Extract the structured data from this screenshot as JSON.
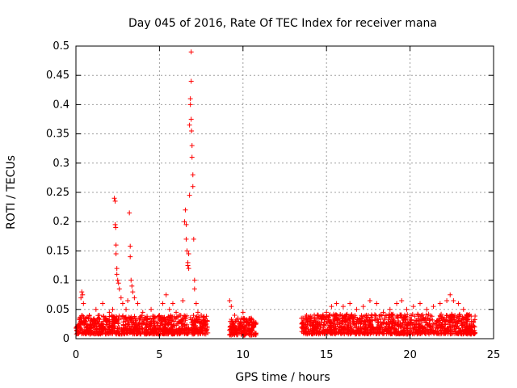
{
  "chart_data": {
    "type": "scatter",
    "title": "Day 045 of 2016, Rate Of TEC Index for receiver mana",
    "xlabel": "GPS time / hours",
    "ylabel": "ROTI / TECUs",
    "xlim": [
      0,
      25
    ],
    "ylim": [
      0,
      0.5
    ],
    "xticks": [
      0,
      5,
      10,
      15,
      20,
      25
    ],
    "xtick_labels": [
      "0",
      "5",
      "10",
      "15",
      "20",
      "25"
    ],
    "yticks": [
      0,
      0.05,
      0.1,
      0.15,
      0.2,
      0.25,
      0.3,
      0.35,
      0.4,
      0.45,
      0.5
    ],
    "ytick_labels": [
      "0",
      "0.05",
      "0.1",
      "0.15",
      "0.2",
      "0.25",
      "0.3",
      "0.35",
      "0.4",
      "0.45",
      "0.5"
    ],
    "grid": true,
    "marker": "+",
    "color": "#ff0000",
    "series": [
      {
        "name": "ROTI",
        "points": [
          [
            0.1,
            0.02
          ],
          [
            0.2,
            0.035
          ],
          [
            0.3,
            0.07
          ],
          [
            0.35,
            0.08
          ],
          [
            0.4,
            0.075
          ],
          [
            0.45,
            0.06
          ],
          [
            0.5,
            0.03
          ],
          [
            0.6,
            0.025
          ],
          [
            0.8,
            0.04
          ],
          [
            1.0,
            0.03
          ],
          [
            1.2,
            0.05
          ],
          [
            1.4,
            0.04
          ],
          [
            1.6,
            0.06
          ],
          [
            1.8,
            0.035
          ],
          [
            2.0,
            0.045
          ],
          [
            2.2,
            0.05
          ],
          [
            2.3,
            0.24
          ],
          [
            2.35,
            0.235
          ],
          [
            2.35,
            0.195
          ],
          [
            2.38,
            0.19
          ],
          [
            2.4,
            0.16
          ],
          [
            2.4,
            0.145
          ],
          [
            2.45,
            0.12
          ],
          [
            2.45,
            0.11
          ],
          [
            2.5,
            0.1
          ],
          [
            2.55,
            0.095
          ],
          [
            2.6,
            0.085
          ],
          [
            2.7,
            0.07
          ],
          [
            2.8,
            0.06
          ],
          [
            3.0,
            0.05
          ],
          [
            3.1,
            0.065
          ],
          [
            3.2,
            0.215
          ],
          [
            3.25,
            0.158
          ],
          [
            3.25,
            0.14
          ],
          [
            3.3,
            0.1
          ],
          [
            3.35,
            0.09
          ],
          [
            3.4,
            0.08
          ],
          [
            3.5,
            0.07
          ],
          [
            3.7,
            0.06
          ],
          [
            4.0,
            0.045
          ],
          [
            4.5,
            0.05
          ],
          [
            5.0,
            0.035
          ],
          [
            5.2,
            0.06
          ],
          [
            5.4,
            0.075
          ],
          [
            5.6,
            0.05
          ],
          [
            5.8,
            0.06
          ],
          [
            6.0,
            0.045
          ],
          [
            6.2,
            0.04
          ],
          [
            6.4,
            0.065
          ],
          [
            6.5,
            0.2
          ],
          [
            6.55,
            0.22
          ],
          [
            6.6,
            0.195
          ],
          [
            6.6,
            0.17
          ],
          [
            6.65,
            0.15
          ],
          [
            6.7,
            0.13
          ],
          [
            6.7,
            0.125
          ],
          [
            6.75,
            0.12
          ],
          [
            6.75,
            0.145
          ],
          [
            6.8,
            0.245
          ],
          [
            6.8,
            0.365
          ],
          [
            6.85,
            0.4
          ],
          [
            6.85,
            0.41
          ],
          [
            6.9,
            0.49
          ],
          [
            6.9,
            0.44
          ],
          [
            6.9,
            0.375
          ],
          [
            6.92,
            0.355
          ],
          [
            6.95,
            0.33
          ],
          [
            6.95,
            0.31
          ],
          [
            7.0,
            0.28
          ],
          [
            7.0,
            0.26
          ],
          [
            7.05,
            0.17
          ],
          [
            7.1,
            0.1
          ],
          [
            7.1,
            0.085
          ],
          [
            7.2,
            0.06
          ],
          [
            7.3,
            0.045
          ],
          [
            7.5,
            0.04
          ],
          [
            7.8,
            0.025
          ],
          [
            9.2,
            0.065
          ],
          [
            9.3,
            0.055
          ],
          [
            9.5,
            0.04
          ],
          [
            9.7,
            0.035
          ],
          [
            10.0,
            0.045
          ],
          [
            10.2,
            0.03
          ],
          [
            10.5,
            0.035
          ],
          [
            10.7,
            0.025
          ],
          [
            13.5,
            0.035
          ],
          [
            13.6,
            0.025
          ],
          [
            13.8,
            0.04
          ],
          [
            14.0,
            0.035
          ],
          [
            14.5,
            0.04
          ],
          [
            15.0,
            0.045
          ],
          [
            15.3,
            0.055
          ],
          [
            15.6,
            0.06
          ],
          [
            16.0,
            0.055
          ],
          [
            16.4,
            0.06
          ],
          [
            16.8,
            0.05
          ],
          [
            17.2,
            0.055
          ],
          [
            17.6,
            0.065
          ],
          [
            18.0,
            0.06
          ],
          [
            18.4,
            0.045
          ],
          [
            18.8,
            0.05
          ],
          [
            19.2,
            0.06
          ],
          [
            19.5,
            0.065
          ],
          [
            19.8,
            0.05
          ],
          [
            20.2,
            0.055
          ],
          [
            20.6,
            0.06
          ],
          [
            21.0,
            0.05
          ],
          [
            21.4,
            0.055
          ],
          [
            21.8,
            0.06
          ],
          [
            22.2,
            0.065
          ],
          [
            22.4,
            0.075
          ],
          [
            22.6,
            0.065
          ],
          [
            22.9,
            0.06
          ],
          [
            23.2,
            0.05
          ],
          [
            23.5,
            0.04
          ],
          [
            23.8,
            0.03
          ]
        ]
      }
    ],
    "dense_bands": [
      {
        "x_start": 0.0,
        "x_end": 7.9,
        "y_min": 0.008,
        "y_max": 0.04,
        "count": 900
      },
      {
        "x_start": 9.2,
        "x_end": 10.8,
        "y_min": 0.006,
        "y_max": 0.035,
        "count": 180
      },
      {
        "x_start": 13.5,
        "x_end": 23.9,
        "y_min": 0.008,
        "y_max": 0.042,
        "count": 1100
      }
    ]
  }
}
